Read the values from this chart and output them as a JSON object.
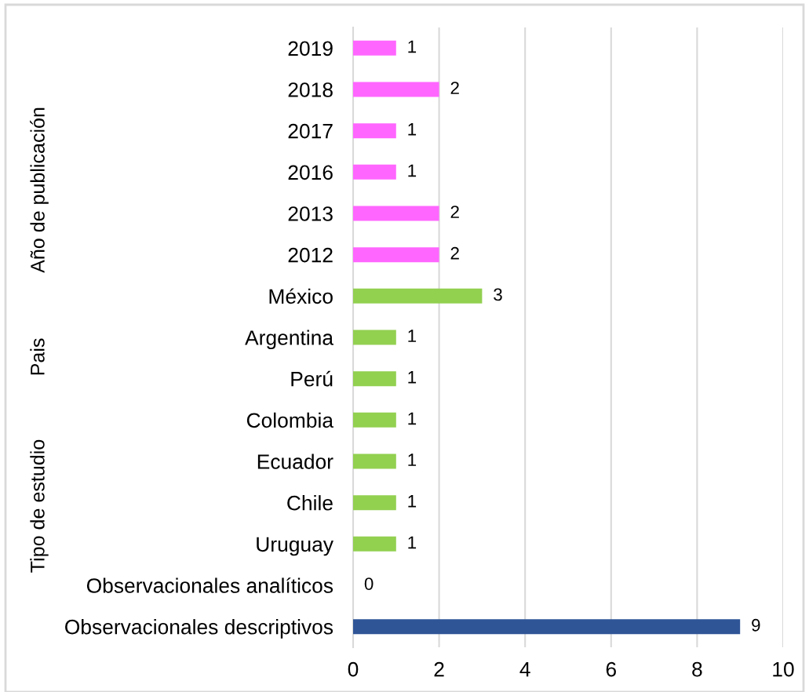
{
  "chart_data": {
    "type": "bar",
    "orientation": "horizontal",
    "categories": [
      "2019",
      "2018",
      "2017",
      "2016",
      "2013",
      "2012",
      "México",
      "Argentina",
      "Perú",
      "Colombia",
      "Ecuador",
      "Chile",
      "Uruguay",
      "Observacionales analíticos",
      "Observacionales descriptivos"
    ],
    "values": [
      1,
      2,
      1,
      1,
      2,
      2,
      3,
      1,
      1,
      1,
      1,
      1,
      1,
      0,
      9
    ],
    "colors": [
      "#ff66ff",
      "#ff66ff",
      "#ff66ff",
      "#ff66ff",
      "#ff66ff",
      "#ff66ff",
      "#92d050",
      "#92d050",
      "#92d050",
      "#92d050",
      "#92d050",
      "#92d050",
      "#92d050",
      "#2f5597",
      "#2f5597"
    ],
    "xlim": [
      0,
      10
    ],
    "xticks": [
      0,
      2,
      4,
      6,
      8,
      10
    ],
    "grid": "x",
    "data_labels": true,
    "annotations": [
      "Año de publicación",
      "Pais",
      "Tipo de estudio"
    ]
  }
}
